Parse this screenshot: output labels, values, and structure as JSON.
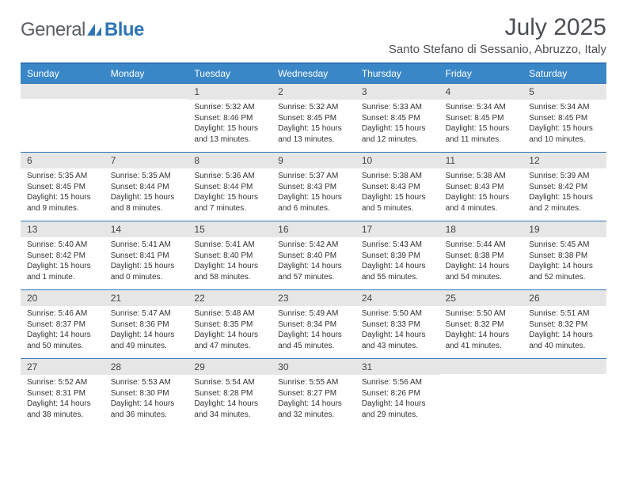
{
  "brand": {
    "part1": "General",
    "part2": "Blue"
  },
  "title": "July 2025",
  "location": "Santo Stefano di Sessanio, Abruzzo, Italy",
  "colors": {
    "accent": "#2e74b5",
    "header_bg": "#3a87c8",
    "daynum_bg": "#e6e6e6",
    "text": "#333333",
    "title_text": "#4a4e54"
  },
  "weekdays": [
    "Sunday",
    "Monday",
    "Tuesday",
    "Wednesday",
    "Thursday",
    "Friday",
    "Saturday"
  ],
  "weeks": [
    [
      {
        "empty": true
      },
      {
        "empty": true
      },
      {
        "num": "1",
        "sunrise": "Sunrise: 5:32 AM",
        "sunset": "Sunset: 8:46 PM",
        "daylight": "Daylight: 15 hours and 13 minutes."
      },
      {
        "num": "2",
        "sunrise": "Sunrise: 5:32 AM",
        "sunset": "Sunset: 8:45 PM",
        "daylight": "Daylight: 15 hours and 13 minutes."
      },
      {
        "num": "3",
        "sunrise": "Sunrise: 5:33 AM",
        "sunset": "Sunset: 8:45 PM",
        "daylight": "Daylight: 15 hours and 12 minutes."
      },
      {
        "num": "4",
        "sunrise": "Sunrise: 5:34 AM",
        "sunset": "Sunset: 8:45 PM",
        "daylight": "Daylight: 15 hours and 11 minutes."
      },
      {
        "num": "5",
        "sunrise": "Sunrise: 5:34 AM",
        "sunset": "Sunset: 8:45 PM",
        "daylight": "Daylight: 15 hours and 10 minutes."
      }
    ],
    [
      {
        "num": "6",
        "sunrise": "Sunrise: 5:35 AM",
        "sunset": "Sunset: 8:45 PM",
        "daylight": "Daylight: 15 hours and 9 minutes."
      },
      {
        "num": "7",
        "sunrise": "Sunrise: 5:35 AM",
        "sunset": "Sunset: 8:44 PM",
        "daylight": "Daylight: 15 hours and 8 minutes."
      },
      {
        "num": "8",
        "sunrise": "Sunrise: 5:36 AM",
        "sunset": "Sunset: 8:44 PM",
        "daylight": "Daylight: 15 hours and 7 minutes."
      },
      {
        "num": "9",
        "sunrise": "Sunrise: 5:37 AM",
        "sunset": "Sunset: 8:43 PM",
        "daylight": "Daylight: 15 hours and 6 minutes."
      },
      {
        "num": "10",
        "sunrise": "Sunrise: 5:38 AM",
        "sunset": "Sunset: 8:43 PM",
        "daylight": "Daylight: 15 hours and 5 minutes."
      },
      {
        "num": "11",
        "sunrise": "Sunrise: 5:38 AM",
        "sunset": "Sunset: 8:43 PM",
        "daylight": "Daylight: 15 hours and 4 minutes."
      },
      {
        "num": "12",
        "sunrise": "Sunrise: 5:39 AM",
        "sunset": "Sunset: 8:42 PM",
        "daylight": "Daylight: 15 hours and 2 minutes."
      }
    ],
    [
      {
        "num": "13",
        "sunrise": "Sunrise: 5:40 AM",
        "sunset": "Sunset: 8:42 PM",
        "daylight": "Daylight: 15 hours and 1 minute."
      },
      {
        "num": "14",
        "sunrise": "Sunrise: 5:41 AM",
        "sunset": "Sunset: 8:41 PM",
        "daylight": "Daylight: 15 hours and 0 minutes."
      },
      {
        "num": "15",
        "sunrise": "Sunrise: 5:41 AM",
        "sunset": "Sunset: 8:40 PM",
        "daylight": "Daylight: 14 hours and 58 minutes."
      },
      {
        "num": "16",
        "sunrise": "Sunrise: 5:42 AM",
        "sunset": "Sunset: 8:40 PM",
        "daylight": "Daylight: 14 hours and 57 minutes."
      },
      {
        "num": "17",
        "sunrise": "Sunrise: 5:43 AM",
        "sunset": "Sunset: 8:39 PM",
        "daylight": "Daylight: 14 hours and 55 minutes."
      },
      {
        "num": "18",
        "sunrise": "Sunrise: 5:44 AM",
        "sunset": "Sunset: 8:38 PM",
        "daylight": "Daylight: 14 hours and 54 minutes."
      },
      {
        "num": "19",
        "sunrise": "Sunrise: 5:45 AM",
        "sunset": "Sunset: 8:38 PM",
        "daylight": "Daylight: 14 hours and 52 minutes."
      }
    ],
    [
      {
        "num": "20",
        "sunrise": "Sunrise: 5:46 AM",
        "sunset": "Sunset: 8:37 PM",
        "daylight": "Daylight: 14 hours and 50 minutes."
      },
      {
        "num": "21",
        "sunrise": "Sunrise: 5:47 AM",
        "sunset": "Sunset: 8:36 PM",
        "daylight": "Daylight: 14 hours and 49 minutes."
      },
      {
        "num": "22",
        "sunrise": "Sunrise: 5:48 AM",
        "sunset": "Sunset: 8:35 PM",
        "daylight": "Daylight: 14 hours and 47 minutes."
      },
      {
        "num": "23",
        "sunrise": "Sunrise: 5:49 AM",
        "sunset": "Sunset: 8:34 PM",
        "daylight": "Daylight: 14 hours and 45 minutes."
      },
      {
        "num": "24",
        "sunrise": "Sunrise: 5:50 AM",
        "sunset": "Sunset: 8:33 PM",
        "daylight": "Daylight: 14 hours and 43 minutes."
      },
      {
        "num": "25",
        "sunrise": "Sunrise: 5:50 AM",
        "sunset": "Sunset: 8:32 PM",
        "daylight": "Daylight: 14 hours and 41 minutes."
      },
      {
        "num": "26",
        "sunrise": "Sunrise: 5:51 AM",
        "sunset": "Sunset: 8:32 PM",
        "daylight": "Daylight: 14 hours and 40 minutes."
      }
    ],
    [
      {
        "num": "27",
        "sunrise": "Sunrise: 5:52 AM",
        "sunset": "Sunset: 8:31 PM",
        "daylight": "Daylight: 14 hours and 38 minutes."
      },
      {
        "num": "28",
        "sunrise": "Sunrise: 5:53 AM",
        "sunset": "Sunset: 8:30 PM",
        "daylight": "Daylight: 14 hours and 36 minutes."
      },
      {
        "num": "29",
        "sunrise": "Sunrise: 5:54 AM",
        "sunset": "Sunset: 8:28 PM",
        "daylight": "Daylight: 14 hours and 34 minutes."
      },
      {
        "num": "30",
        "sunrise": "Sunrise: 5:55 AM",
        "sunset": "Sunset: 8:27 PM",
        "daylight": "Daylight: 14 hours and 32 minutes."
      },
      {
        "num": "31",
        "sunrise": "Sunrise: 5:56 AM",
        "sunset": "Sunset: 8:26 PM",
        "daylight": "Daylight: 14 hours and 29 minutes."
      },
      {
        "empty": true
      },
      {
        "empty": true
      }
    ]
  ]
}
